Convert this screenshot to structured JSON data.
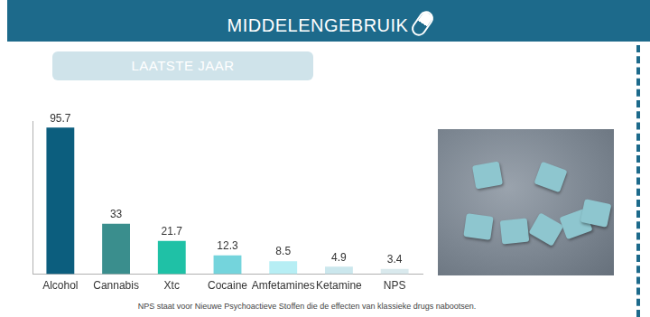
{
  "header": {
    "title": "MIDDELENGEBRUIK"
  },
  "chart_data": {
    "type": "bar",
    "title": "LAATSTE JAAR",
    "categories": [
      "Alcohol",
      "Cannabis",
      "Xtc",
      "Cocaine",
      "Amfetamines",
      "Ketamine",
      "NPS"
    ],
    "values": [
      95.7,
      33,
      21.7,
      12.3,
      8.5,
      4.9,
      3.4
    ],
    "colors": [
      "#0c5e7e",
      "#3a8e8d",
      "#1fc1a6",
      "#74d4dc",
      "#b6eef4",
      "#cbe7ed",
      "#d9e9ed"
    ],
    "ylim": [
      0,
      100
    ],
    "tick_labels": "x",
    "grid": false,
    "data_labels": true,
    "annotations": [
      "NPS staat voor Nieuwe Psychoactieve Stoffen die de effecten van klassieke drugs nabootsen."
    ]
  }
}
